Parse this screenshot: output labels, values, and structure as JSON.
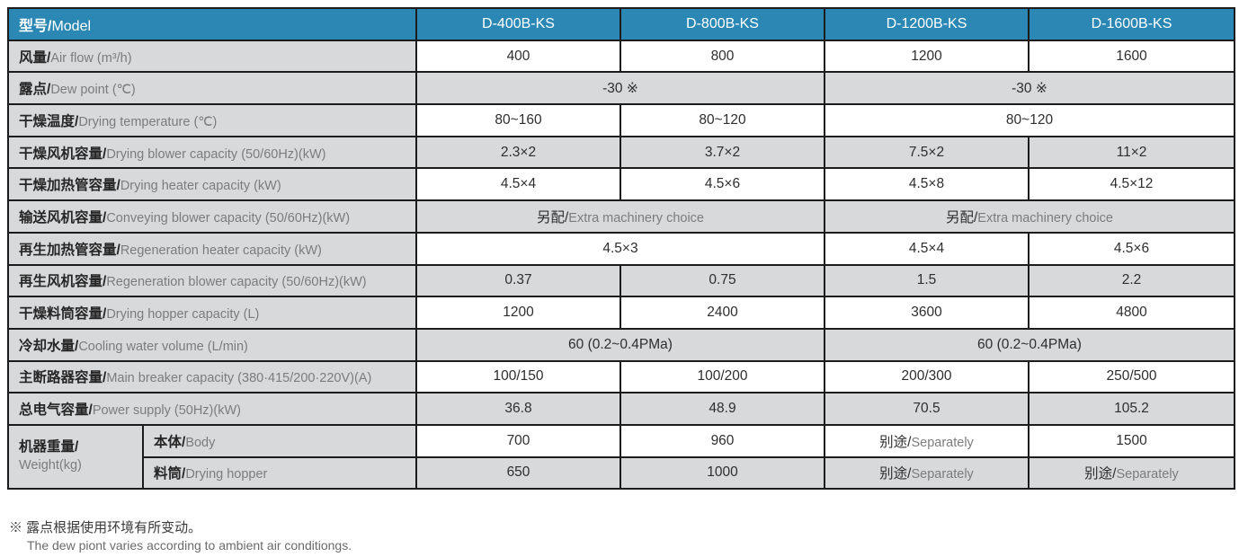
{
  "colors": {
    "header_bg": "#2b87b3",
    "row_gray": "#d8d9db",
    "border": "#1c1c1c",
    "label_zh": "#262626",
    "label_en": "#7c7c7c",
    "value": "#2e2e2e"
  },
  "header": {
    "label_zh": "型号/",
    "label_en": "Model",
    "models": [
      "D-400B-KS",
      "D-800B-KS",
      "D-1200B-KS",
      "D-1600B-KS"
    ]
  },
  "rows": [
    {
      "zh": "风量/",
      "en": "Air flow (m³/h)",
      "cells": [
        {
          "t": "400"
        },
        {
          "t": "800"
        },
        {
          "t": "1200"
        },
        {
          "t": "1600"
        }
      ]
    },
    {
      "zh": "露点/",
      "en": "Dew point (℃)",
      "cells": [
        {
          "t": "-30 ※",
          "span": 2
        },
        {
          "t": "-30 ※",
          "span": 2
        }
      ]
    },
    {
      "zh": "干燥温度/",
      "en": "Drying temperature (℃)",
      "cells": [
        {
          "t": "80~160"
        },
        {
          "t": "80~120"
        },
        {
          "t": "80~120",
          "span": 2
        }
      ]
    },
    {
      "zh": "干燥风机容量/",
      "en": "Drying blower capacity (50/60Hz)(kW)",
      "cells": [
        {
          "t": "2.3×2"
        },
        {
          "t": "3.7×2"
        },
        {
          "t": "7.5×2"
        },
        {
          "t": "11×2"
        }
      ]
    },
    {
      "zh": "干燥加热管容量/",
      "en": "Drying heater capacity (kW)",
      "cells": [
        {
          "t": "4.5×4"
        },
        {
          "t": "4.5×6"
        },
        {
          "t": "4.5×8"
        },
        {
          "t": "4.5×12"
        }
      ]
    },
    {
      "zh": "输送风机容量/",
      "en": "Conveying blower capacity (50/60Hz)(kW)",
      "cells": [
        {
          "zh": "另配/",
          "en": "Extra machinery choice",
          "span": 2
        },
        {
          "zh": "另配/",
          "en": "Extra machinery choice",
          "span": 2
        }
      ]
    },
    {
      "zh": "再生加热管容量/",
      "en": "Regeneration heater capacity (kW)",
      "cells": [
        {
          "t": "4.5×3",
          "span": 2
        },
        {
          "t": "4.5×4"
        },
        {
          "t": "4.5×6"
        }
      ]
    },
    {
      "zh": "再生风机容量/",
      "en": "Regeneration blower capacity (50/60Hz)(kW)",
      "cells": [
        {
          "t": "0.37"
        },
        {
          "t": "0.75"
        },
        {
          "t": "1.5"
        },
        {
          "t": "2.2"
        }
      ]
    },
    {
      "zh": "干燥料筒容量/",
      "en": "Drying hopper capacity (L)",
      "cells": [
        {
          "t": "1200"
        },
        {
          "t": "2400"
        },
        {
          "t": "3600"
        },
        {
          "t": "4800"
        }
      ]
    },
    {
      "zh": "冷却水量/",
      "en": "Cooling water volume (L/min)",
      "cells": [
        {
          "t": "60 (0.2~0.4PMa)",
          "span": 2
        },
        {
          "t": "60 (0.2~0.4PMa)",
          "span": 2
        }
      ]
    },
    {
      "zh": "主断路器容量/",
      "en": "Main breaker capacity (380·415/200·220V)(A)",
      "cells": [
        {
          "t": "100/150"
        },
        {
          "t": "100/200"
        },
        {
          "t": "200/300"
        },
        {
          "t": "250/500"
        }
      ]
    },
    {
      "zh": "总电气容量/",
      "en": "Power supply (50Hz)(kW)",
      "cells": [
        {
          "t": "36.8"
        },
        {
          "t": "48.9"
        },
        {
          "t": "70.5"
        },
        {
          "t": "105.2"
        }
      ]
    }
  ],
  "weight_group": {
    "zh": "机器重量/",
    "en": "Weight(kg)",
    "rows": [
      {
        "zh": "本体/",
        "en": "Body",
        "cells": [
          {
            "t": "700"
          },
          {
            "t": "960"
          },
          {
            "zh": "别途/",
            "en": "Separately"
          },
          {
            "t": "1500"
          }
        ]
      },
      {
        "zh": "料筒/",
        "en": "Drying hopper",
        "cells": [
          {
            "t": "650"
          },
          {
            "t": "1000"
          },
          {
            "zh": "别途/",
            "en": "Separately"
          },
          {
            "zh": "别途/",
            "en": "Separately"
          }
        ]
      }
    ]
  },
  "footnote": {
    "zh": "※ 露点根据使用环境有所变动。",
    "en": "The dew piont varies according to ambient air conditiongs."
  }
}
